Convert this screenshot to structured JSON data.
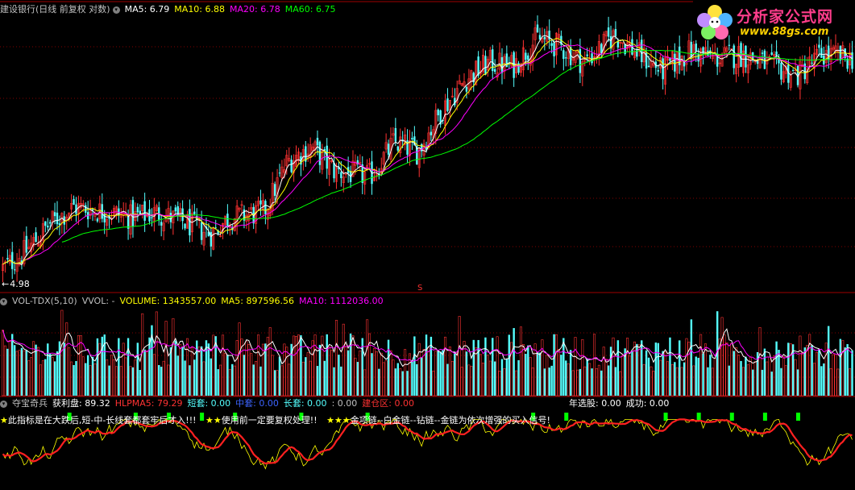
{
  "main_header": {
    "title": "建设银行(日线 前复权 对数)",
    "ma5": "MA5: 6.79",
    "ma10": "MA10: 6.88",
    "ma20": "MA20: 6.78",
    "ma60": "MA60: 6.75",
    "low_marker": "4.98",
    "s_marker": "S"
  },
  "logo": {
    "title": "分析家公式网",
    "url": "www.88gs.com"
  },
  "vol_header": {
    "name": "VOL-TDX(5,10)",
    "vvol": "VVOL: -",
    "volume": "VOLUME: 1343557.00",
    "ma5": "MA5: 897596.56",
    "ma10": "MA10: 1112036.00"
  },
  "ind_header": {
    "name": "夺宝奇兵",
    "profit": "获利盘: 89.32",
    "hlpma5": "HLPMA5: 79.29",
    "short": "短套: 0.00",
    "mid": "中套: 0.00",
    "long": "长套: 0.00",
    "colon_val": ": 0.00",
    "build": "建仓区: 0.00",
    "year_pick": "年选股: 0.00",
    "success": "成功: 0.00"
  },
  "banner": {
    "s1": "★",
    "t1": "此指标是在大跌后,短-中-长线套都套牢后才入!!!",
    "s2": "★★",
    "t2": "使用前一定要复权处理!!",
    "s3": "★★★",
    "t3": "金项链--白金链--钻链--金链为依次增强的买入信号!"
  },
  "colors": {
    "up": "#ff3232",
    "down": "#54ffff",
    "ma5": "#ffffff",
    "ma10": "#ffff00",
    "ma20": "#ff00ff",
    "ma60": "#00ff00",
    "grid": "#800000",
    "green_bar": "#00ff00"
  },
  "chart_data": {
    "type": "candlestick",
    "price_axis": {
      "scale": "log",
      "low_label": 4.98
    },
    "close_path_waypoints": [
      [
        0,
        5.0
      ],
      [
        10,
        5.15
      ],
      [
        20,
        5.4
      ],
      [
        30,
        5.55
      ],
      [
        45,
        5.5
      ],
      [
        55,
        5.45
      ],
      [
        65,
        5.5
      ],
      [
        75,
        5.42
      ],
      [
        88,
        5.3
      ],
      [
        95,
        5.45
      ],
      [
        110,
        5.5
      ],
      [
        120,
        6.0
      ],
      [
        130,
        6.15
      ],
      [
        140,
        5.9
      ],
      [
        155,
        5.85
      ],
      [
        165,
        6.2
      ],
      [
        175,
        6.1
      ],
      [
        185,
        6.55
      ],
      [
        195,
        6.9
      ],
      [
        205,
        7.1
      ],
      [
        215,
        7.05
      ],
      [
        225,
        7.4
      ],
      [
        235,
        7.3
      ],
      [
        245,
        7.1
      ],
      [
        258,
        7.45
      ],
      [
        268,
        7.2
      ],
      [
        278,
        7.0
      ],
      [
        290,
        7.25
      ],
      [
        300,
        7.15
      ],
      [
        312,
        7.2
      ],
      [
        320,
        7.1
      ],
      [
        335,
        6.95
      ],
      [
        345,
        7.2
      ],
      [
        358,
        7.15
      ]
    ],
    "volume_axis": {
      "last_volume": 1343557.0,
      "ma5": 897596.56,
      "ma10": 1112036.0
    },
    "indicator": {
      "profit": 89.32,
      "hlpma5": 79.29
    },
    "bars": 360
  }
}
